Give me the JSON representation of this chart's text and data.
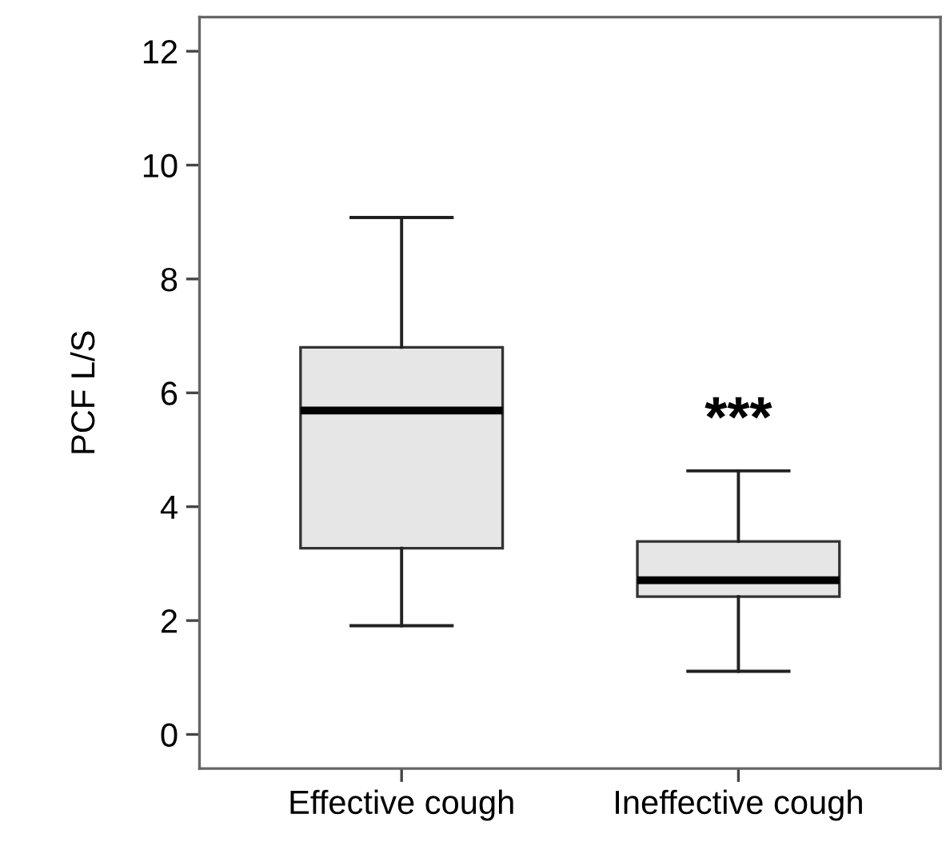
{
  "chart_data": {
    "type": "box",
    "ylabel": "PCF L/S",
    "categories": [
      "Effective cough",
      "Ineffective cough"
    ],
    "boxes": [
      {
        "low": 1.91,
        "q1": 3.27,
        "median": 5.69,
        "q3": 6.8,
        "high": 9.08
      },
      {
        "low": 1.11,
        "q1": 2.42,
        "median": 2.71,
        "q3": 3.39,
        "high": 4.63
      }
    ],
    "color": "#e6e6e6",
    "ylim": [
      -0.6,
      12.6
    ],
    "yticks": [
      0,
      2,
      4,
      6,
      8,
      10,
      12
    ],
    "grid": false,
    "annotations": [
      "***"
    ]
  }
}
